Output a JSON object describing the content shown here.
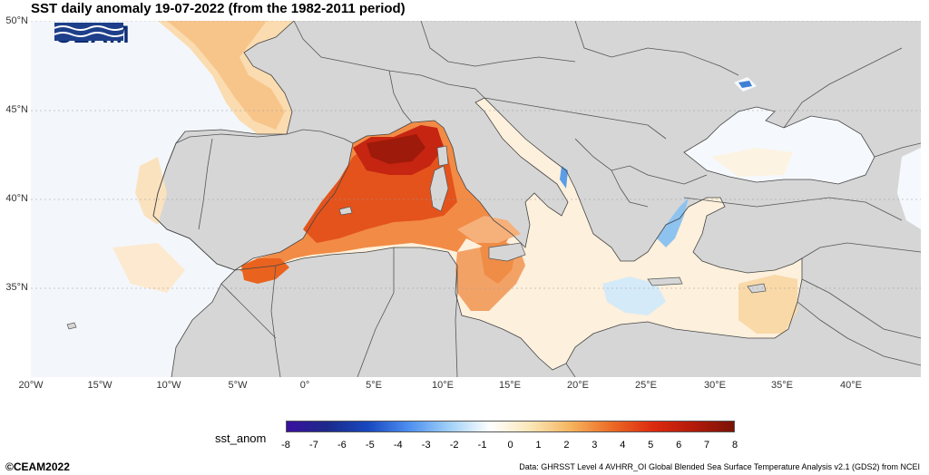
{
  "title": "SST daily anomaly 19-07-2022 (from the 1982-2011 period)",
  "logo": {
    "text": "CEAM"
  },
  "latitude_labels": [
    "50°N",
    "45°N",
    "40°N",
    "35°N"
  ],
  "longitude_labels": [
    "20°W",
    "15°W",
    "10°W",
    "5°W",
    "0°",
    "5°E",
    "10°E",
    "15°E",
    "20°E",
    "25°E",
    "30°E",
    "35°E",
    "40°E"
  ],
  "colorbar": {
    "label": "sst_anom",
    "ticks": [
      "-8",
      "-7",
      "-6",
      "-5",
      "-4",
      "-3",
      "-2",
      "-1",
      "0",
      "1",
      "2",
      "3",
      "4",
      "5",
      "6",
      "7",
      "8"
    ],
    "colors": [
      "#3a0fa0",
      "#1c2a8a",
      "#1848c0",
      "#4d8ef0",
      "#9fd0f7",
      "#ffffff",
      "#fbe6b6",
      "#f5b35e",
      "#ec6a25",
      "#dc2b10",
      "#b41a0a",
      "#7a1205"
    ]
  },
  "copyright": "©CEAM2022",
  "source": "Data: GHRSST Level 4 AVHRR_OI Global Blended Sea Surface Temperature Analysis v2.1 (GDS2) from NCEI",
  "map": {
    "land_color": "#d6d6d6",
    "ocean_color": "#ffffff",
    "border_color": "#555555"
  }
}
